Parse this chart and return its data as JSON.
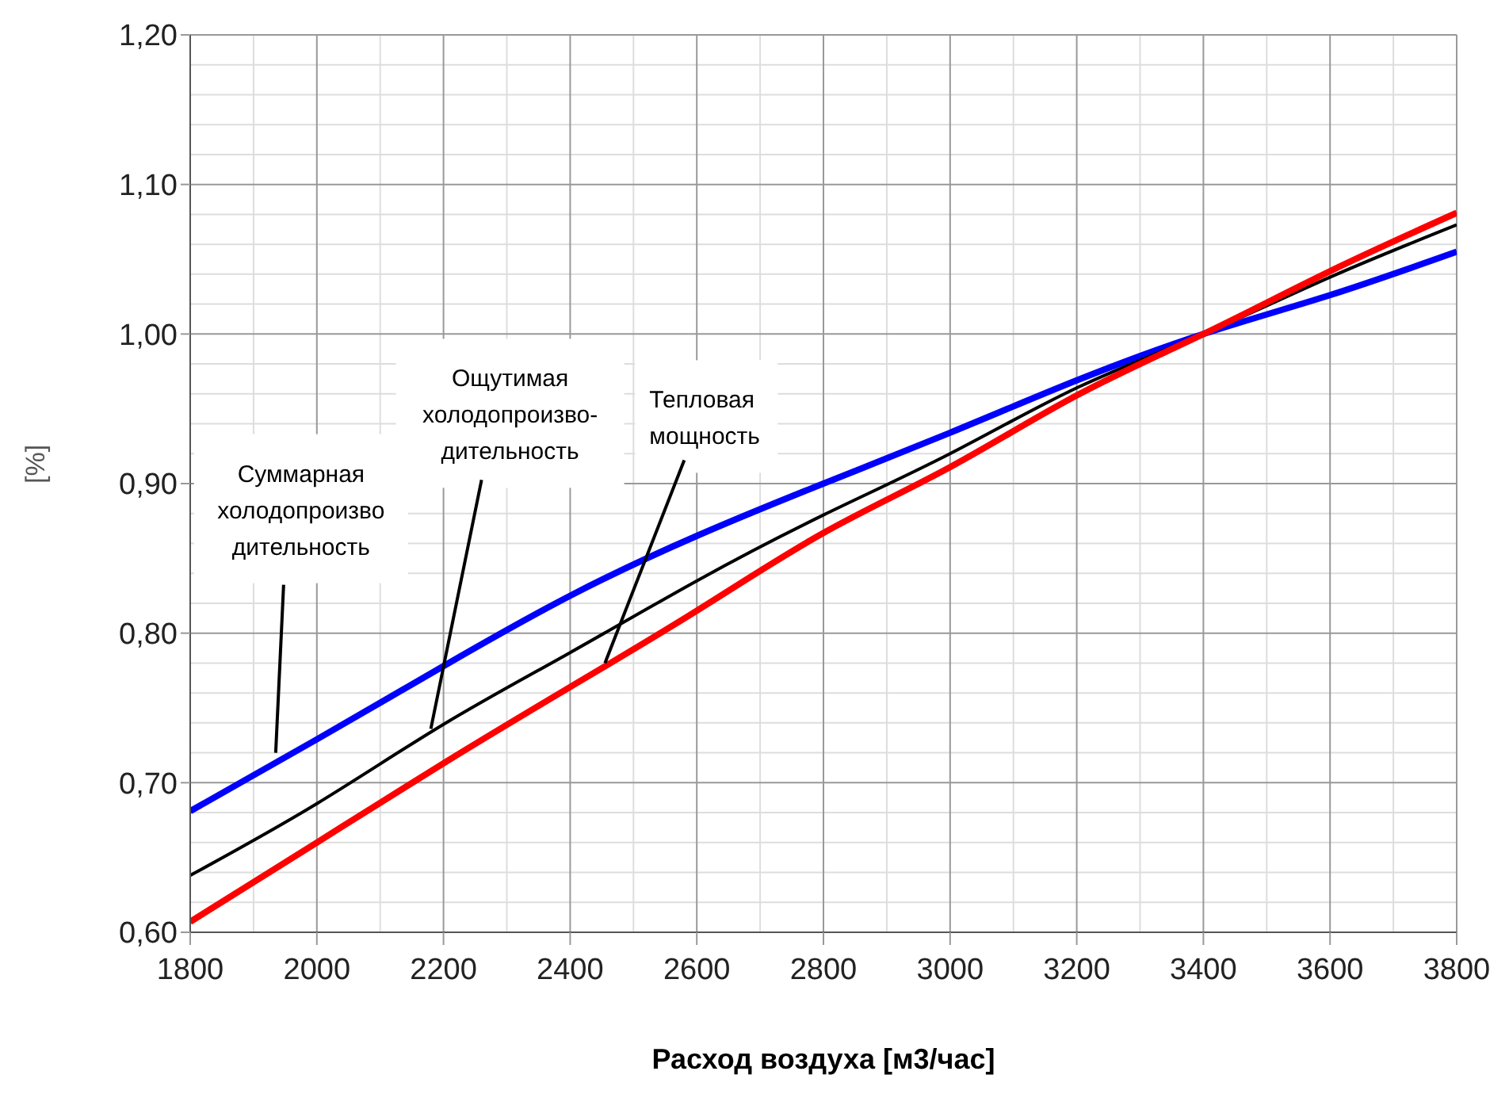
{
  "chart_data": {
    "type": "line",
    "xlabel": "Расход воздуха [м3/час]",
    "ylabel": "[%]",
    "x": [
      1800,
      2000,
      2200,
      2400,
      2600,
      2800,
      3000,
      3200,
      3400,
      3600,
      3800
    ],
    "series": [
      {
        "color": "#0000ff",
        "values": [
          0.681,
          0.729,
          0.778,
          0.825,
          0.865,
          0.9,
          0.934,
          0.969,
          1.0,
          1.026,
          1.055
        ]
      },
      {
        "color": "#000000",
        "values": [
          0.638,
          0.686,
          0.739,
          0.787,
          0.835,
          0.879,
          0.92,
          0.964,
          1.0,
          1.038,
          1.073
        ]
      },
      {
        "color": "#ff0000",
        "values": [
          0.607,
          0.66,
          0.713,
          0.764,
          0.815,
          0.867,
          0.911,
          0.959,
          1.0,
          1.042,
          1.081
        ]
      }
    ],
    "xlim": [
      1800,
      3800
    ],
    "ylim": [
      0.6,
      1.2
    ],
    "xticks": [
      1800,
      2000,
      2200,
      2400,
      2600,
      2800,
      3000,
      3200,
      3400,
      3600,
      3800
    ],
    "yticks": [
      {
        "value": 0.6,
        "label": "0,60"
      },
      {
        "value": 0.7,
        "label": "0,70"
      },
      {
        "value": 0.8,
        "label": "0,80"
      },
      {
        "value": 0.9,
        "label": "0,90"
      },
      {
        "value": 1.0,
        "label": "1,00"
      },
      {
        "value": 1.1,
        "label": "1,10"
      },
      {
        "value": 1.2,
        "label": "1,20"
      }
    ],
    "grid": true,
    "legend": false,
    "marker": "none",
    "line_style": "solid",
    "annotations": [
      {
        "text": "Суммарная\nхолодопроизво\nдительность",
        "x": 1935,
        "y": 0.72
      },
      {
        "text": "Ощутимая\nхолодопроизво-\nдительность",
        "x": 2180,
        "y": 0.736
      },
      {
        "text": "Тепловая\nмощность",
        "x": 2455,
        "y": 0.78
      }
    ]
  }
}
